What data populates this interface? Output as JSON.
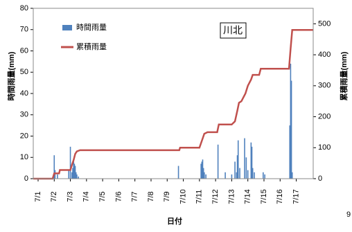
{
  "chart_data": {
    "type": "bar_line",
    "annotation": "川北",
    "corner_text": "9",
    "y_label": "時間雨量(mm)",
    "y2_label": "累積雨量(mm)",
    "x_label": "日付",
    "xlim": [
      -0.3,
      17.05
    ],
    "xticks": [
      {
        "value": 0,
        "label": "7/1"
      },
      {
        "value": 1,
        "label": "7/2"
      },
      {
        "value": 2,
        "label": "7/3"
      },
      {
        "value": 3,
        "label": "7/4"
      },
      {
        "value": 4,
        "label": "7/5"
      },
      {
        "value": 5,
        "label": "7/6"
      },
      {
        "value": 6,
        "label": "7/7"
      },
      {
        "value": 7,
        "label": "7/8"
      },
      {
        "value": 8,
        "label": "7/9"
      },
      {
        "value": 9,
        "label": "7/10"
      },
      {
        "value": 10,
        "label": "7/11"
      },
      {
        "value": 11,
        "label": "7/12"
      },
      {
        "value": 12,
        "label": "7/13"
      },
      {
        "value": 13,
        "label": "7/14"
      },
      {
        "value": 14,
        "label": "7/15"
      },
      {
        "value": 15,
        "label": "7/16"
      },
      {
        "value": 16,
        "label": "7/17"
      }
    ],
    "ylim": [
      0,
      80
    ],
    "yticks": [
      0,
      10,
      20,
      30,
      40,
      50,
      60,
      70,
      80
    ],
    "y2lim": [
      0,
      550
    ],
    "y2ticks": [
      0,
      100,
      200,
      300,
      400,
      500
    ],
    "series": [
      {
        "name": "時間雨量",
        "kind": "bar",
        "color": "#4f81bd",
        "x": [
          1.0,
          1.05,
          1.2,
          1.9,
          2.0,
          2.1,
          2.15,
          2.2,
          2.25,
          2.3,
          2.35,
          2.4,
          2.5,
          8.7,
          10.1,
          10.15,
          10.2,
          10.25,
          10.3,
          10.4,
          11.15,
          11.6,
          12.0,
          12.2,
          12.3,
          12.35,
          12.4,
          12.5,
          12.8,
          12.9,
          13.0,
          13.2,
          13.25,
          13.3,
          13.4,
          13.95,
          14.05,
          15.6,
          15.65,
          15.7,
          15.75
        ],
        "values": [
          11,
          4,
          2,
          4,
          15,
          3,
          5,
          9,
          7,
          6,
          3,
          2,
          1,
          6,
          7,
          8,
          9,
          5,
          3,
          2,
          16,
          3,
          2,
          8,
          3,
          11,
          18,
          5,
          19,
          10,
          4,
          17,
          15,
          5,
          3,
          3,
          2,
          25,
          54,
          46,
          3
        ]
      },
      {
        "name": "累積雨量",
        "kind": "line",
        "axis": "y2",
        "color": "#c0504d",
        "x": [
          -0.3,
          0.9,
          1.0,
          1.3,
          1.35,
          2.0,
          2.1,
          2.2,
          2.3,
          2.4,
          2.6,
          8.75,
          8.8,
          10.0,
          10.2,
          10.3,
          10.5,
          11.1,
          11.2,
          12.0,
          12.2,
          12.35,
          12.45,
          12.6,
          12.85,
          13.0,
          13.2,
          13.3,
          13.7,
          13.8,
          15.55,
          15.65,
          15.75,
          17.05
        ],
        "values": [
          0,
          0,
          17,
          17,
          28,
          28,
          45,
          60,
          80,
          88,
          92,
          92,
          100,
          100,
          130,
          145,
          150,
          150,
          175,
          175,
          185,
          220,
          245,
          250,
          275,
          300,
          320,
          335,
          335,
          355,
          355,
          420,
          480,
          480
        ]
      }
    ]
  }
}
